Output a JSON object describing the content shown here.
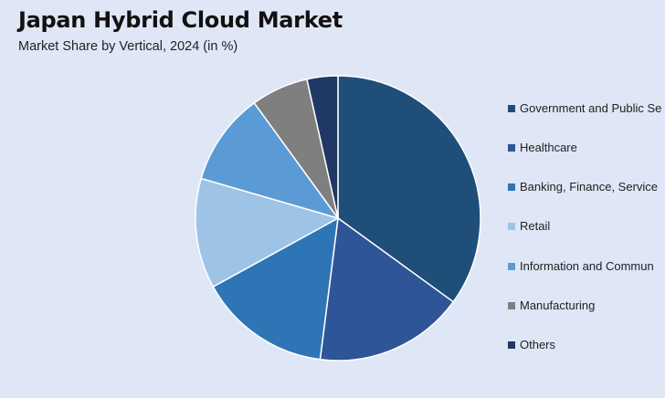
{
  "title": "Japan Hybrid Cloud Market",
  "subtitle": "Market Share by Vertical, 2024 (in %)",
  "chart_data": {
    "type": "pie",
    "title": "Japan Hybrid Cloud Market",
    "subtitle": "Market Share by Vertical, 2024 (in %)",
    "legend_position": "right",
    "slices": [
      {
        "label": "Government and Public Sector",
        "display_label": "Government and Public Se",
        "value": 35.0,
        "color": "#1f4e79"
      },
      {
        "label": "Healthcare",
        "display_label": "Healthcare",
        "value": 17.0,
        "color": "#2e5597"
      },
      {
        "label": "Banking, Finance, Services",
        "display_label": "Banking, Finance, Service",
        "value": 15.0,
        "color": "#2e75b6"
      },
      {
        "label": "Retail",
        "display_label": "Retail",
        "value": 12.5,
        "color": "#9dc3e6"
      },
      {
        "label": "Information and Communication",
        "display_label": "Information and Commun",
        "value": 10.5,
        "color": "#5b9bd5"
      },
      {
        "label": "Manufacturing",
        "display_label": "Manufacturing",
        "value": 6.5,
        "color": "#7f7f7f"
      },
      {
        "label": "Others",
        "display_label": "Others",
        "value": 3.5,
        "color": "#203864"
      }
    ]
  }
}
